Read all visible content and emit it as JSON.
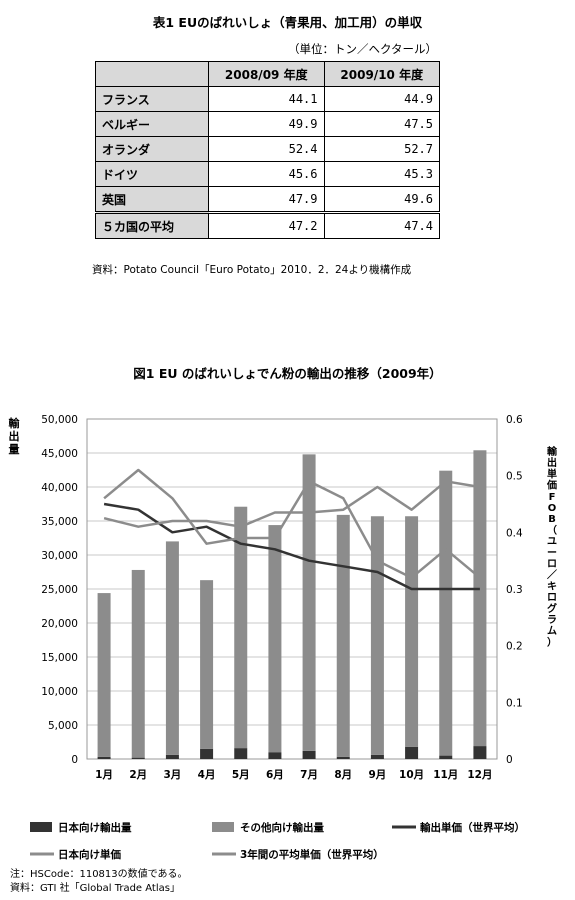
{
  "table1": {
    "title": "表1 EUのばれいしょ（青果用、加工用）の単収",
    "unit": "（単位：トン／ヘクタール）",
    "columns": [
      "2008/09 年度",
      "2009/10 年度"
    ],
    "rows": [
      {
        "label": "フランス",
        "v1": "44.1",
        "v2": "44.9"
      },
      {
        "label": "ベルギー",
        "v1": "49.9",
        "v2": "47.5"
      },
      {
        "label": "オランダ",
        "v1": "52.4",
        "v2": "52.7"
      },
      {
        "label": "ドイツ",
        "v1": "45.6",
        "v2": "45.3"
      },
      {
        "label": "英国",
        "v1": "47.9",
        "v2": "49.6"
      }
    ],
    "average": {
      "label": "５カ国の平均",
      "v1": "47.2",
      "v2": "47.4"
    },
    "source": "資料：Potato Council「Euro Potato」2010．2．24より機構作成"
  },
  "figure1": {
    "title": "図1 EU のばれいしょでん粉の輸出の推移（2009年）",
    "note1": "注：HSCode：110813の数値である。",
    "note2": "資料：GTI 社「Global Trade Atlas」"
  },
  "chart_data": {
    "type": "bar",
    "categories": [
      "1月",
      "2月",
      "3月",
      "4月",
      "5月",
      "6月",
      "7月",
      "8月",
      "9月",
      "10月",
      "11月",
      "12月"
    ],
    "ylabel": "輸出量",
    "y2label": "輸出単価FOB（ユーロ／キログラム）",
    "ylim": [
      0,
      50000
    ],
    "y2lim": [
      0,
      0.6
    ],
    "yticks": [
      "0",
      "5,000",
      "10,000",
      "15,000",
      "20,000",
      "25,000",
      "30,000",
      "35,000",
      "40,000",
      "45,000",
      "50,000"
    ],
    "y2ticks": [
      "0",
      "0.1",
      "0.2",
      "0.3",
      "0.4",
      "0.5",
      "0.6"
    ],
    "grid": true,
    "legend_position": "bottom",
    "stacked": true,
    "bar_series": [
      {
        "name": "日本向け輸出量",
        "color": "#333333",
        "values": [
          300,
          200,
          600,
          1500,
          1600,
          1000,
          1200,
          300,
          600,
          1800,
          500,
          1900
        ]
      },
      {
        "name": "その他向け輸出量",
        "color": "#8c8c8c",
        "values": [
          24100,
          27600,
          31400,
          24800,
          35500,
          33400,
          43600,
          35600,
          35100,
          33900,
          41900,
          43500
        ]
      }
    ],
    "line_series": [
      {
        "name": "輸出単価（世界平均）",
        "color": "#333333",
        "width": 2.5,
        "values": [
          0.45,
          0.44,
          0.4,
          0.41,
          0.38,
          0.37,
          0.35,
          0.34,
          0.33,
          0.3,
          0.3,
          0.3
        ]
      },
      {
        "name": "日本向け単価",
        "color": "#8c8c8c",
        "width": 2.5,
        "values": [
          0.46,
          0.51,
          0.46,
          0.38,
          0.39,
          0.39,
          0.49,
          0.46,
          0.35,
          0.32,
          0.37,
          0.32
        ]
      },
      {
        "name": "3年間の平均単価（世界平均）",
        "color": "#8c8c8c",
        "width": 2.5,
        "values": [
          0.425,
          0.41,
          0.42,
          0.42,
          0.41,
          0.435,
          0.435,
          0.44,
          0.48,
          0.44,
          0.49,
          0.48
        ]
      }
    ]
  }
}
